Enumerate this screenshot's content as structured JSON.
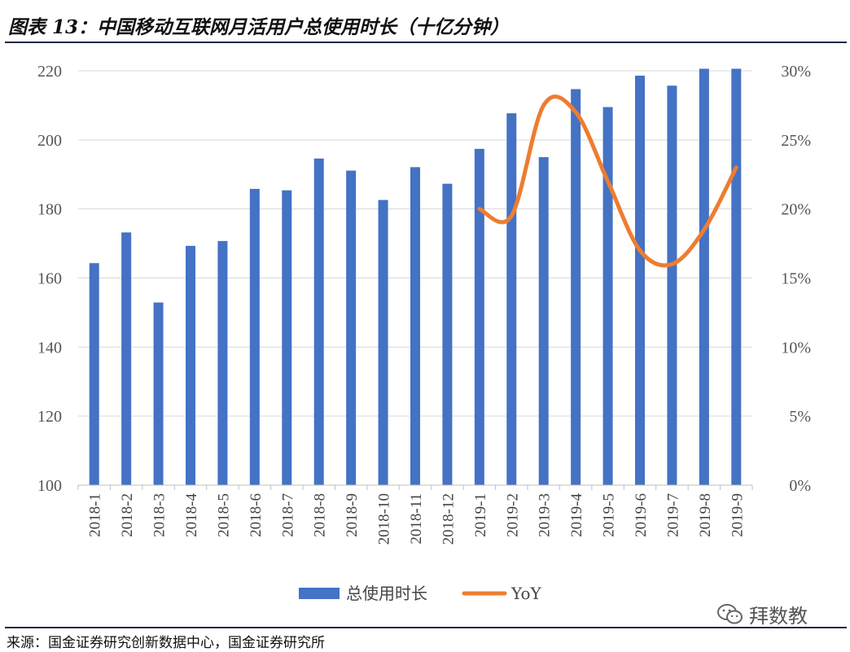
{
  "title": "图表 13：中国移动互联网月活用户总使用时长（十亿分钟）",
  "source": "来源：国金证券研究创新数据中心，国金证券研究所",
  "watermark": "拜数教",
  "colors": {
    "bar": "#4472C4",
    "line": "#ED7D31",
    "grid": "#d9d9d9",
    "rule": "#1f2a44"
  },
  "chart_data": {
    "type": "bar",
    "categories": [
      "2018-1",
      "2018-2",
      "2018-3",
      "2018-4",
      "2018-5",
      "2018-6",
      "2018-7",
      "2018-8",
      "2018-9",
      "2018-10",
      "2018-11",
      "2018-12",
      "2019-1",
      "2019-2",
      "2019-3",
      "2019-4",
      "2019-5",
      "2019-6",
      "2019-7",
      "2019-8",
      "2019-9"
    ],
    "series": [
      {
        "name": "总使用时长",
        "type": "bar",
        "axis": "left",
        "values": [
          164.3,
          173.2,
          152.9,
          169.3,
          170.7,
          185.8,
          185.4,
          194.6,
          191.1,
          182.6,
          192.1,
          187.3,
          197.4,
          207.7,
          195.0,
          214.7,
          209.5,
          218.6,
          215.7,
          220.6,
          220.6
        ]
      },
      {
        "name": "YoY",
        "type": "line",
        "axis": "right",
        "values": [
          null,
          null,
          null,
          null,
          null,
          null,
          null,
          null,
          null,
          null,
          null,
          null,
          0.2,
          0.195,
          0.275,
          0.27,
          0.22,
          0.17,
          0.16,
          0.185,
          0.23
        ]
      }
    ],
    "yleft": {
      "ticks": [
        "100",
        "120",
        "140",
        "160",
        "180",
        "200",
        "220"
      ],
      "lim": [
        100,
        220
      ]
    },
    "yright": {
      "ticks": [
        "0%",
        "5%",
        "10%",
        "15%",
        "20%",
        "25%",
        "30%"
      ],
      "lim": [
        0,
        0.3
      ]
    },
    "grid": true,
    "legend": "bottom-center"
  }
}
